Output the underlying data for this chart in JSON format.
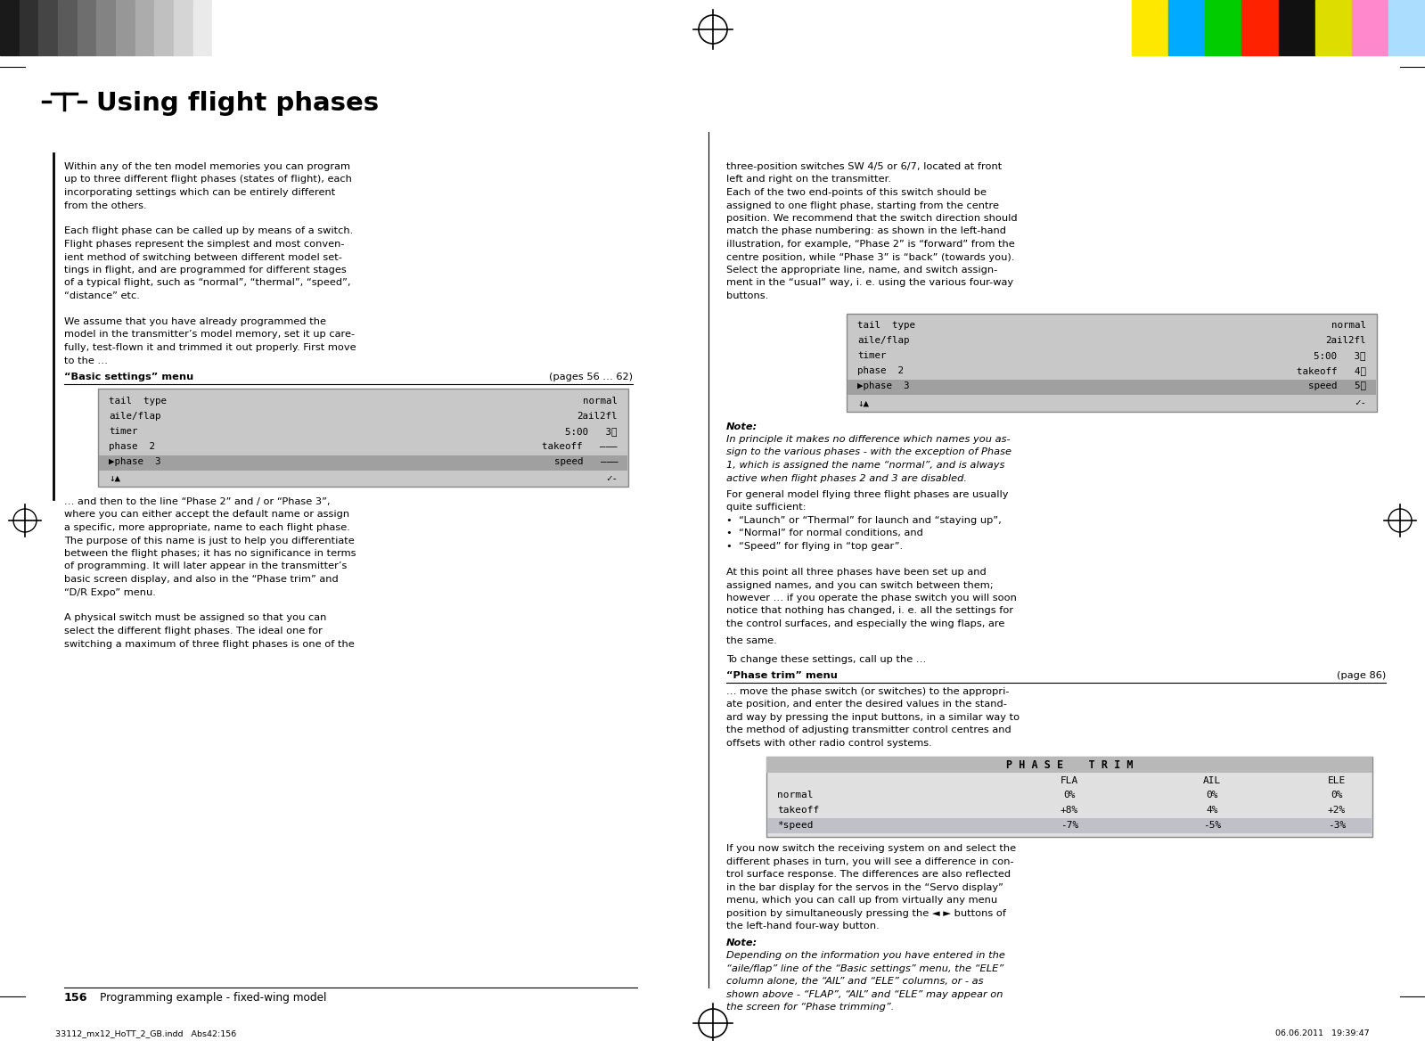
{
  "bg_color": "#ffffff",
  "title": "Using flight phases",
  "gray_bar_colors": [
    "#1a1a1a",
    "#303030",
    "#454545",
    "#5a5a5a",
    "#6e6e6e",
    "#838383",
    "#979797",
    "#acacac",
    "#c0c0c0",
    "#d5d5d5",
    "#eaeaea",
    "#ffffff"
  ],
  "color_bar_colors": [
    "#ffe800",
    "#00aaff",
    "#00cc00",
    "#ff2200",
    "#111111",
    "#dddd00",
    "#ff88cc",
    "#aaddff"
  ],
  "footer_text_left": "33112_mx12_HoTT_2_GB.indd   Abs42:156",
  "footer_text_right": "06.06.2011   19:39:47",
  "left_col_text": [
    "Within any of the ten model memories you can program",
    "up to three different flight phases (states of flight), each",
    "incorporating settings which can be entirely different",
    "from the others.",
    "",
    "Each flight phase can be called up by means of a switch.",
    "Flight phases represent the simplest and most conven-",
    "ient method of switching between different model set-",
    "tings in flight, and are programmed for different stages",
    "of a typical flight, such as “normal”, “thermal”, “speed”,",
    "“distance” etc.",
    "",
    "We assume that you have already programmed the",
    "model in the transmitter’s model memory, set it up care-",
    "fully, test-flown it and trimmed it out properly. First move",
    "to the …"
  ],
  "after_screen1_text": [
    "… and then to the line “Phase 2” and / or “Phase 3”,",
    "where you can either accept the default name or assign",
    "a specific, more appropriate, name to each flight phase.",
    "The purpose of this name is just to help you differentiate",
    "between the flight phases; it has no significance in terms",
    "of programming. It will later appear in the transmitter’s",
    "basic screen display, and also in the “Phase trim” and",
    "“D/R Expo” menu.",
    "",
    "A physical switch must be assigned so that you can",
    "select the different flight phases. The ideal one for",
    "switching a maximum of three flight phases is one of the"
  ],
  "screen1_lines": [
    [
      "tail  type",
      "normal"
    ],
    [
      "aile/flap",
      "2ail2fl"
    ],
    [
      "timer",
      "5:00   3⤵"
    ],
    [
      "phase  2",
      "takeoff   ———"
    ],
    [
      "▶phase  3",
      "speed   ———"
    ]
  ],
  "screen1_highlight_row": 4,
  "right_col_text_top": [
    "three-position switches SW 4/5 or 6/7, located at front",
    "left and right on the transmitter.",
    "Each of the two end-points of this switch should be",
    "assigned to one flight phase, starting from the centre",
    "position. We recommend that the switch direction should",
    "match the phase numbering: as shown in the left-hand",
    "illustration, for example, “Phase 2” is “forward” from the",
    "centre position, while “Phase 3” is “back” (towards you).",
    "Select the appropriate line, name, and switch assign-",
    "ment in the “usual” way, i. e. using the various four-way",
    "buttons."
  ],
  "screen2_lines": [
    [
      "tail  type",
      "normal"
    ],
    [
      "aile/flap",
      "2ail2fl"
    ],
    [
      "timer",
      "5:00   3⤵"
    ],
    [
      "phase  2",
      "takeoff   4⤵"
    ],
    [
      "▶phase  3",
      "speed   5⤵"
    ]
  ],
  "screen2_highlight_row": 4,
  "note1_text": [
    "In principle it makes no difference which names you as-",
    "sign to the various phases - with the exception of Phase",
    "1, which is assigned the name “normal”, and is always",
    "active when flight phases 2 and 3 are disabled."
  ],
  "mid_text": [
    "For general model flying three flight phases are usually",
    "quite sufficient:",
    "•  “Launch” or “Thermal” for launch and “staying up”,",
    "•  “Normal” for normal conditions, and",
    "•  “Speed” for flying in “top gear”.",
    "",
    "At this point all three phases have been set up and",
    "assigned names, and you can switch between them;",
    "however … if you operate the phase switch you will soon",
    "notice that nothing has changed, i. e. all the settings for",
    "the control surfaces, and especially the wing flaps, are"
  ],
  "phase_trim_after": [
    "… move the phase switch (or switches) to the appropri-",
    "ate position, and enter the desired values in the stand-",
    "ard way by pressing the input buttons, in a similar way to",
    "the method of adjusting transmitter control centres and",
    "offsets with other radio control systems."
  ],
  "phase_trim_rows": [
    [
      "normal",
      "0%",
      "0%",
      "0%"
    ],
    [
      "takeoff",
      "+8%",
      "4%",
      "+2%"
    ],
    [
      "*speed",
      "-7%",
      "-5%",
      "-3%"
    ]
  ],
  "phase_trim_highlight": 2,
  "servo_display_text": [
    "If you now switch the receiving system on and select the",
    "different phases in turn, you will see a difference in con-",
    "trol surface response. The differences are also reflected",
    "in the bar display for the servos in the “Servo display”",
    "menu, which you can call up from virtually any menu",
    "position by simultaneously pressing the ◄ ► buttons of",
    "the left-hand four-way button."
  ],
  "note2_text": [
    "Depending on the information you have entered in the",
    "“aile/flap” line of the “Basic settings” menu, the “ELE”",
    "column alone, the “AIL” and “ELE” columns, or - as",
    "shown above - “FLAP”, “AIL” and “ELE” may appear on",
    "the screen for “Phase trimming”."
  ]
}
